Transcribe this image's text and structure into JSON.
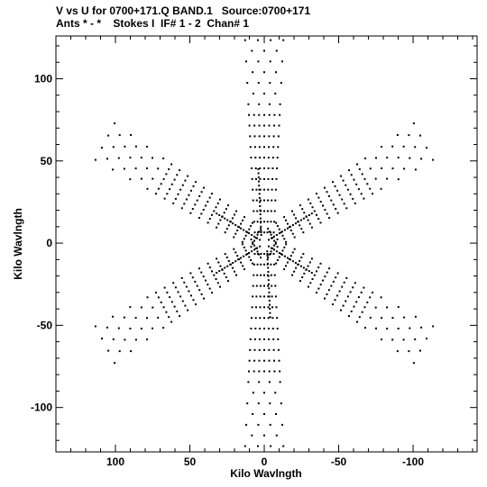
{
  "header": {
    "line1": "V vs U for 0700+171.Q BAND.1   Source:0700+171",
    "line2": "Ants * - *    Stokes I  IF# 1 - 2  Chan# 1"
  },
  "chart_data": {
    "type": "scatter",
    "xlabel": "Kilo Wavlngth",
    "ylabel": "Kilo Wavlngth",
    "xlim": [
      140,
      -143
    ],
    "ylim": [
      -127,
      126
    ],
    "xticks": [
      100,
      50,
      0,
      -50,
      -100
    ],
    "yticks": [
      100,
      50,
      0,
      -50,
      -100
    ],
    "grid": false,
    "marker_color": "#000000",
    "arms": [
      {
        "angle_deg": 90,
        "count": 20
      },
      {
        "angle_deg": 270,
        "count": 20
      },
      {
        "angle_deg": 30,
        "count": 19
      },
      {
        "angle_deg": 210,
        "count": 19
      },
      {
        "angle_deg": 150,
        "count": 19
      },
      {
        "angle_deg": 330,
        "count": 19
      }
    ],
    "tracks": [
      {
        "x1": 3,
        "y1": 2,
        "x2": 32,
        "y2": 18
      },
      {
        "x1": -3,
        "y1": -2,
        "x2": -32,
        "y2": -18
      },
      {
        "x1": -3,
        "y1": 2,
        "x2": -32,
        "y2": 18
      },
      {
        "x1": 3,
        "y1": -2,
        "x2": 32,
        "y2": -18
      },
      {
        "x1": 2,
        "y1": 5,
        "x2": 4,
        "y2": 45
      },
      {
        "x1": -2,
        "y1": -5,
        "x2": -4,
        "y2": -45
      }
    ]
  }
}
